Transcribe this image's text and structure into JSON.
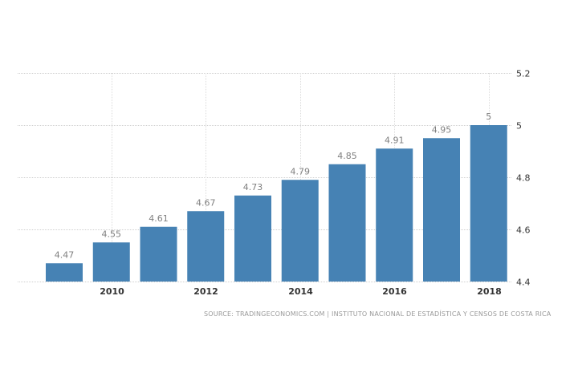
{
  "chart_data": {
    "type": "bar",
    "title": "",
    "xlabel": "",
    "ylabel": "",
    "categories": [
      "2009",
      "2010",
      "2011",
      "2012",
      "2013",
      "2014",
      "2015",
      "2016",
      "2017",
      "2018"
    ],
    "values": [
      4.47,
      4.55,
      4.61,
      4.67,
      4.73,
      4.79,
      4.85,
      4.91,
      4.95,
      5
    ],
    "data_labels": [
      "4.47",
      "4.55",
      "4.61",
      "4.67",
      "4.73",
      "4.79",
      "4.85",
      "4.91",
      "4.95",
      "5"
    ],
    "x_tick_labels": [
      "2010",
      "2012",
      "2014",
      "2016",
      "2018"
    ],
    "y_tick_labels": [
      "5.2",
      "5",
      "4.8",
      "4.6",
      "4.4"
    ],
    "y_ticks": [
      5.2,
      5.0,
      4.8,
      4.6,
      4.4
    ],
    "ylim": [
      4.4,
      5.2
    ],
    "grid": true,
    "y_axis_position": "right",
    "legend": null,
    "bar_color": "#4682b4"
  },
  "source": "SOURCE: TRADINGECONOMICS.COM | INSTITUTO NACIONAL DE ESTADÍSTICA Y CENSOS DE COSTA RICA"
}
